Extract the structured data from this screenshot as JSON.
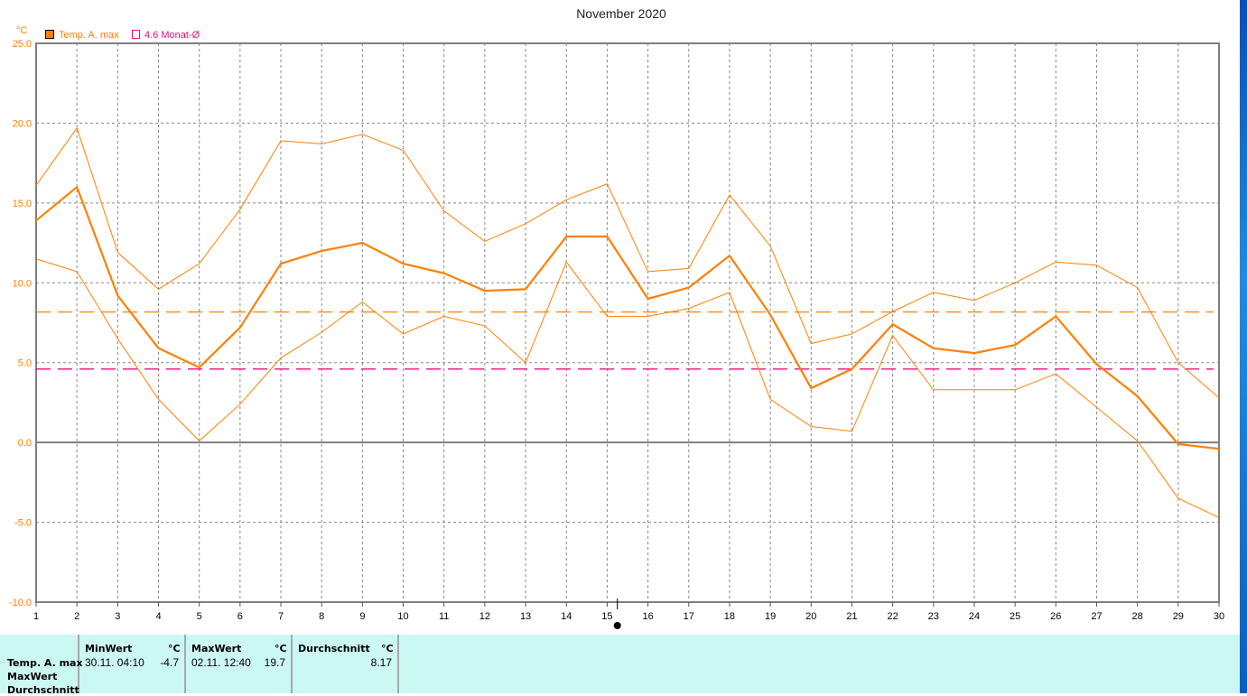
{
  "chart_data": {
    "type": "line",
    "title": "November 2020",
    "ylabel": "°C",
    "xlabel": "",
    "ylim": [
      -10,
      25
    ],
    "xlim": [
      1,
      30
    ],
    "grid": true,
    "yticks": [
      "25.0",
      "20.0",
      "15.0",
      "10.0",
      "5.0",
      "0.0",
      "-5.0",
      "-10.0"
    ],
    "x": [
      1,
      2,
      3,
      4,
      5,
      6,
      7,
      8,
      9,
      10,
      11,
      12,
      13,
      14,
      15,
      16,
      17,
      18,
      19,
      20,
      21,
      22,
      23,
      24,
      25,
      26,
      27,
      28,
      29,
      30
    ],
    "legend": [
      {
        "label": "Temp. A. max",
        "color": "#ff8000"
      },
      {
        "label": "4.6 Monat-Ø",
        "color": "#e8107a"
      }
    ],
    "series": [
      {
        "name": "Temp. A. max",
        "color": "#ff8000",
        "width": 2.2,
        "values": [
          13.9,
          16.0,
          9.2,
          5.9,
          4.7,
          7.2,
          11.2,
          12.0,
          12.5,
          11.2,
          10.6,
          9.5,
          9.6,
          12.9,
          12.9,
          9.0,
          9.7,
          11.7,
          8.0,
          3.4,
          4.6,
          7.4,
          5.9,
          5.6,
          6.1,
          7.9,
          4.9,
          2.9,
          -0.1,
          -0.4
        ]
      },
      {
        "color": "#ff8000",
        "width": 1,
        "values": [
          16.1,
          19.7,
          11.9,
          9.6,
          11.2,
          14.6,
          18.9,
          18.7,
          19.3,
          18.3,
          14.5,
          12.6,
          13.7,
          15.2,
          16.2,
          10.7,
          10.9,
          15.5,
          12.3,
          6.2,
          6.8,
          8.2,
          9.4,
          8.9,
          10.0,
          11.3,
          11.1,
          9.7,
          5.0,
          2.8
        ]
      },
      {
        "color": "#ff8000",
        "width": 1,
        "values": [
          11.5,
          10.7,
          6.5,
          2.7,
          0.1,
          2.4,
          5.3,
          6.9,
          8.8,
          6.8,
          7.9,
          7.3,
          5.0,
          11.3,
          7.9,
          7.9,
          8.4,
          9.4,
          2.7,
          1.0,
          0.7,
          6.7,
          3.3,
          3.3,
          3.3,
          4.3,
          2.2,
          0.1,
          -3.5,
          -4.7
        ]
      }
    ],
    "reference_lines": [
      {
        "value": 8.17,
        "color": "#ff8000"
      },
      {
        "value": 4.6,
        "color": "#e8107a"
      }
    ]
  },
  "stats": {
    "row_labels": [
      "Temp. A. max",
      "MaxWert",
      "Durchschnitt"
    ],
    "unit": "°C",
    "min": {
      "header": "MinWert",
      "date": "30.11.  04:10",
      "value": "-4.7"
    },
    "max": {
      "header": "MaxWert",
      "date": "02.11.  12:40",
      "value": "19.7"
    },
    "avg": {
      "header": "Durchschnitt",
      "value": "8.17"
    }
  }
}
